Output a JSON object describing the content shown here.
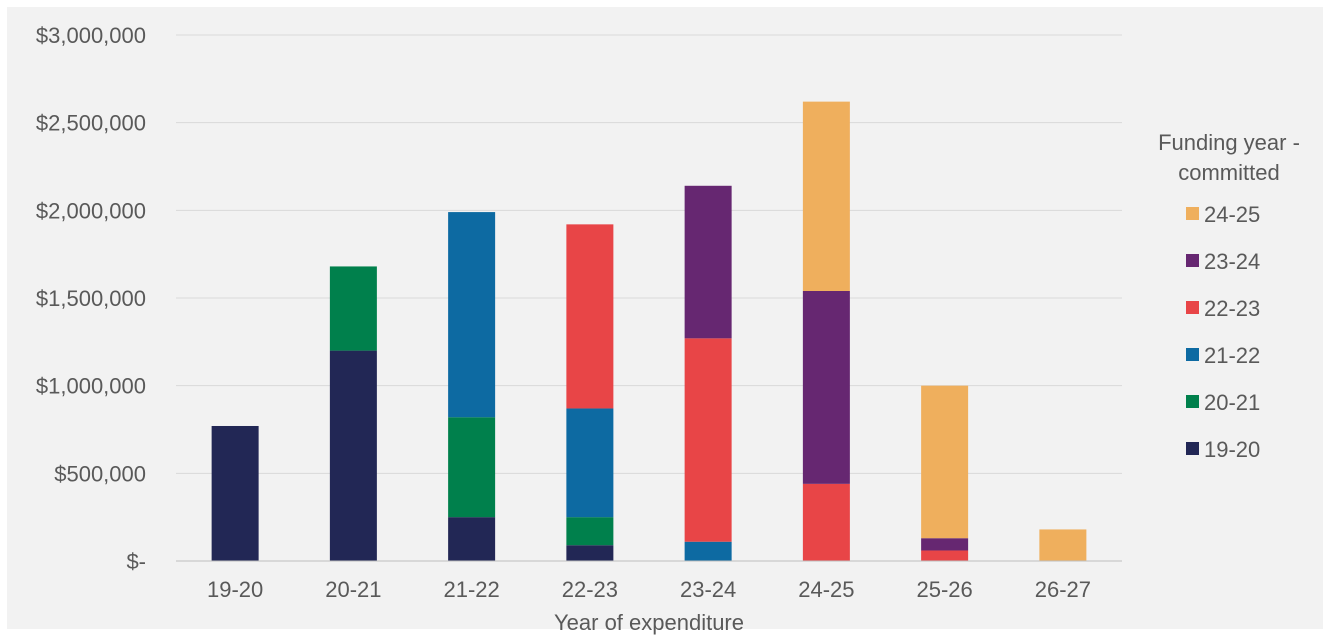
{
  "chart_data": {
    "type": "bar",
    "stacked": true,
    "categories": [
      "19-20",
      "20-21",
      "21-22",
      "22-23",
      "23-24",
      "24-25",
      "25-26",
      "26-27"
    ],
    "xlabel": "Year of expenditure",
    "ylabel": "",
    "ylim": [
      0,
      3000000
    ],
    "yticks": [
      0,
      500000,
      1000000,
      1500000,
      2000000,
      2500000,
      3000000
    ],
    "ytick_labels": [
      "$-",
      "$500,000",
      "$1,000,000",
      "$1,500,000",
      "$2,000,000",
      "$2,500,000",
      "$3,000,000"
    ],
    "grid": true,
    "legend_title": "Funding year - committed",
    "legend_title_lines": [
      "Funding year -",
      "committed"
    ],
    "legend_position": "right",
    "series": [
      {
        "name": "19-20",
        "color": "#222755",
        "values": [
          770000,
          1200000,
          250000,
          90000,
          0,
          0,
          0,
          0
        ]
      },
      {
        "name": "20-21",
        "color": "#00804C",
        "values": [
          0,
          480000,
          570000,
          160000,
          0,
          0,
          0,
          0
        ]
      },
      {
        "name": "21-22",
        "color": "#0D6AA2",
        "values": [
          0,
          0,
          1170000,
          620000,
          110000,
          0,
          0,
          0
        ]
      },
      {
        "name": "22-23",
        "color": "#E84547",
        "values": [
          0,
          0,
          0,
          1050000,
          1160000,
          440000,
          60000,
          0
        ]
      },
      {
        "name": "23-24",
        "color": "#662771",
        "values": [
          0,
          0,
          0,
          0,
          870000,
          1100000,
          70000,
          0
        ]
      },
      {
        "name": "24-25",
        "color": "#EFAF5D",
        "values": [
          0,
          0,
          0,
          0,
          0,
          1080000,
          870000,
          180000
        ]
      }
    ]
  }
}
